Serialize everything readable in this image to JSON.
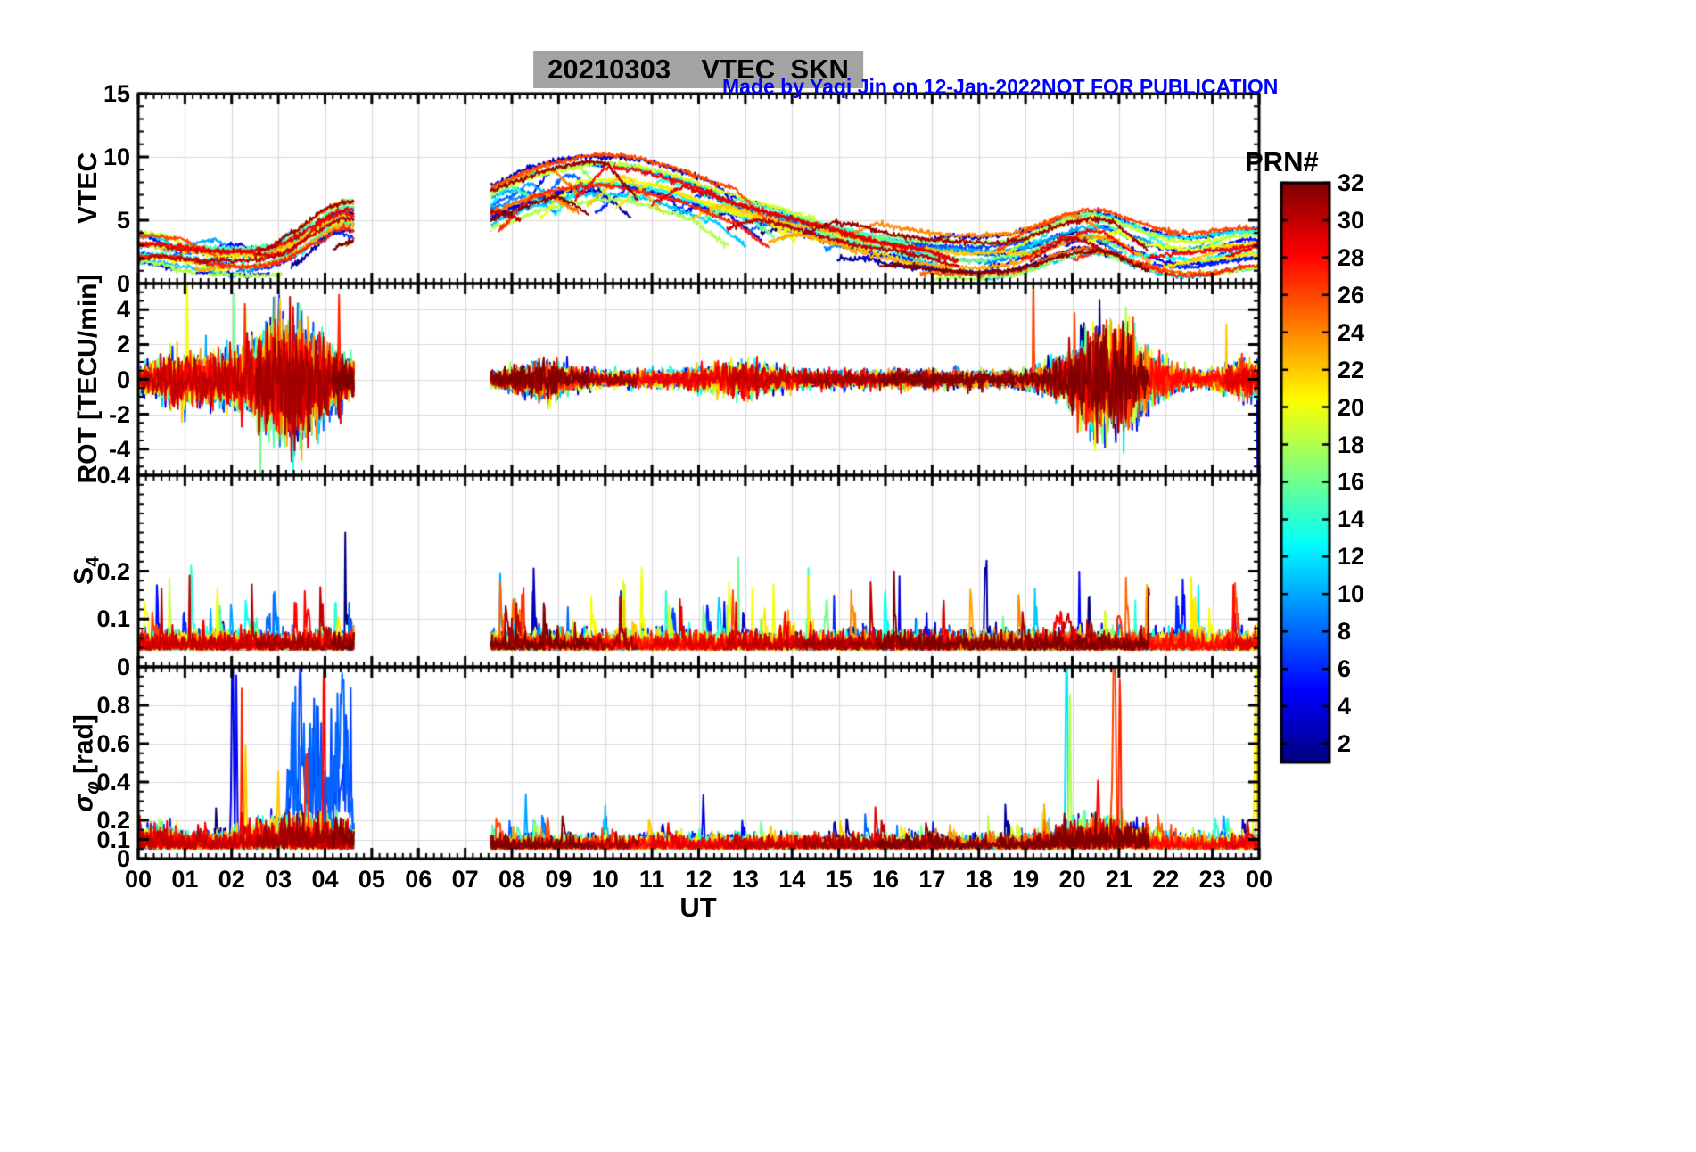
{
  "header": {
    "title": "20210303    VTEC  SKN",
    "credit": "Made by Yaqi Jin on 12-Jan-2022",
    "warning": "NOT FOR PUBLICATION"
  },
  "colors": {
    "background": "#ffffff",
    "axis": "#000000",
    "grid": "#d9d9d9",
    "title_bg": "#a3a3a3",
    "credit_blue": "#0000ff"
  },
  "chart_data": {
    "type": "line",
    "title": "20210303 VTEC SKN",
    "station": "SKN",
    "date": "20210303",
    "xlabel": "UT",
    "x_range": [
      0,
      24
    ],
    "x_tick_values": [
      0,
      1,
      2,
      3,
      4,
      5,
      6,
      7,
      8,
      9,
      10,
      11,
      12,
      13,
      14,
      15,
      16,
      17,
      18,
      19,
      20,
      21,
      22,
      23,
      24
    ],
    "x_tick_labels": [
      "00",
      "01",
      "02",
      "03",
      "04",
      "05",
      "06",
      "07",
      "08",
      "09",
      "10",
      "11",
      "12",
      "13",
      "14",
      "15",
      "16",
      "17",
      "18",
      "19",
      "20",
      "21",
      "22",
      "23",
      "00"
    ],
    "x_minor_step_hours": 0.166667,
    "data_gap_hours": [
      4.63,
      7.55
    ],
    "colorbar": {
      "label": "PRN#",
      "min": 1,
      "max": 32,
      "tick_values": [
        2,
        4,
        6,
        8,
        10,
        12,
        14,
        16,
        18,
        20,
        22,
        24,
        26,
        28,
        30,
        32
      ],
      "colormap": "jet"
    },
    "panels": [
      {
        "name": "VTEC",
        "ylabel": "VTEC",
        "ylim": [
          0,
          15
        ],
        "ytick_values": [
          0,
          5,
          10,
          15
        ],
        "ytick_labels": [
          "0",
          "5",
          "10",
          "15"
        ],
        "grid_values": [
          5,
          10
        ],
        "minor_step": 1,
        "description": "Vertical TEC per GPS satellite; ~2-6 TECU 00-04.6 UT, receiver gap 04.6-07.5 UT, broad daytime maximum ~8-10 TECU near 09-10 UT, decay to ~2-4 TECU by 18 UT, small evening enhancement 19.5-21.5 UT"
      },
      {
        "name": "ROT",
        "ylabel": "ROT [TECU/min]",
        "ylim": [
          -5.5,
          5.5
        ],
        "ytick_values": [
          -4,
          -2,
          0,
          2,
          4
        ],
        "ytick_labels": [
          "-4",
          "-2",
          "0",
          "2",
          "4"
        ],
        "grid_values": [
          -4,
          -2,
          0,
          2,
          4
        ],
        "minor_step": 0.5,
        "description": "Rate of TEC change centered on 0; strong fluctuations +/-3 to 4 during 02-04.6 UT and 19.5-21.5 UT; isolated full-scale spikes near 01.1 and 19.2 UT"
      },
      {
        "name": "S4",
        "ylabel_main": "S",
        "ylabel_sub": "4",
        "ylim": [
          0,
          0.4
        ],
        "ytick_values": [
          0,
          0.1,
          0.2,
          0.4
        ],
        "ytick_labels": [
          "0",
          "0.1",
          "0.2",
          "0.4"
        ],
        "grid_values": [
          0.1,
          0.2
        ],
        "minor_step": 0.02,
        "description": "Amplitude scintillation index; baseline ~0.03-0.08 with sporadic spikes to 0.1-0.2 (largest ~0.2 near 12.9 and 16.3 UT)"
      },
      {
        "name": "sigma_phi",
        "ylabel_sym": "σ",
        "ylabel_sub": "φ",
        "ylabel_rest": " [rad]",
        "ylim": [
          0,
          1
        ],
        "ytick_values": [
          0,
          0.1,
          0.2,
          0.4,
          0.6,
          0.8
        ],
        "ytick_labels": [
          "0",
          "0.1",
          "0.2",
          "0.4",
          "0.6",
          "0.8"
        ],
        "grid_values": [
          0.1,
          0.2,
          0.4,
          0.6,
          0.8
        ],
        "minor_step": 0.05,
        "description": "Phase scintillation; baseline ~0.05-0.15 rad, saturated spikes to ~1 rad near 02.0-02.3, 04.0, 19.9, 20.9-21.1 and 23.9-24.0 UT, elevated blue-PRN cloud 0.2-0.7 rad during 03.2-04.6 UT"
      }
    ],
    "synthesis": {
      "seed": 20210303,
      "sample_minutes": 1,
      "prn_count": 32,
      "visibility": {
        "start_mul": 1.63,
        "dur_base": 5.5,
        "dur_mod": 0.9,
        "second_offset": 11.7,
        "dur2_base": 5.0,
        "dur2_mod": 0.8,
        "event_halfwidth": 0.8
      },
      "vtec": {
        "floor": 2.0,
        "offset_amp": 1.2,
        "wander": 0.05,
        "noise": 0.1,
        "bumps": [
          {
            "c": 9.9,
            "w": 3.6,
            "a": 6.6
          },
          {
            "c": 20.4,
            "w": 1.3,
            "a": 2.2
          },
          {
            "c": 4.4,
            "w": 1.0,
            "a": 2.6
          },
          {
            "c": 14.5,
            "w": 2.2,
            "a": 1.0
          },
          {
            "c": 0.0,
            "w": 1.3,
            "a": 0.9
          },
          {
            "c": 24.0,
            "w": 1.3,
            "a": 0.9
          }
        ]
      },
      "rot": {
        "noise": 0.22,
        "envelope": [
          {
            "c": 3.2,
            "w": 1.05,
            "a": 6.5
          },
          {
            "c": 20.8,
            "w": 0.95,
            "a": 5.5
          },
          {
            "c": 8.7,
            "w": 0.6,
            "a": 1.3
          },
          {
            "c": 12.9,
            "w": 0.8,
            "a": 1.0
          },
          {
            "c": 1.0,
            "w": 0.9,
            "a": 2.0
          },
          {
            "c": 23.8,
            "w": 0.5,
            "a": 1.5
          }
        ]
      },
      "s4": {
        "base": 0.035,
        "noise": 0.016,
        "burst_prob": 0.004,
        "burst_amp": 0.1
      },
      "sigma": {
        "base": 0.05,
        "noise": 0.03,
        "burst_prob": 0.003,
        "burst_amp": 0.12,
        "envelope": [
          {
            "c": 3.5,
            "w": 1.2,
            "a": 1.6
          },
          {
            "c": 20.6,
            "w": 1.0,
            "a": 1.3
          },
          {
            "c": 0.3,
            "w": 0.6,
            "a": 0.8
          }
        ],
        "blue_band": {
          "prns": [
            7,
            8
          ],
          "t0": 3.15,
          "t1": 4.6,
          "base": 0.12,
          "noise": 0.22
        }
      },
      "events": {
        "rot": [
          {
            "prn": 20,
            "t": 1.05,
            "w": 0.012,
            "amp": 6.0
          },
          {
            "prn": 18,
            "t": 2.3,
            "w": 0.012,
            "amp": 4.0
          },
          {
            "prn": 16,
            "t": 2.05,
            "w": 0.012,
            "amp": 3.6
          },
          {
            "prn": 16,
            "t": 2.62,
            "w": 0.012,
            "amp": -3.4
          },
          {
            "prn": 9,
            "t": 2.9,
            "w": 0.012,
            "amp": 3.4
          },
          {
            "prn": 12,
            "t": 3.35,
            "w": 0.012,
            "amp": -3.2
          },
          {
            "prn": 27,
            "t": 4.3,
            "w": 0.012,
            "amp": 4.5
          },
          {
            "prn": 28,
            "t": 4.33,
            "w": 0.012,
            "amp": -3.6
          },
          {
            "prn": 26,
            "t": 19.17,
            "w": 0.012,
            "amp": 7.0
          },
          {
            "prn": 26,
            "t": 20.05,
            "w": 0.012,
            "amp": 3.2
          },
          {
            "prn": 28,
            "t": 20.3,
            "w": 0.012,
            "amp": -3.2
          },
          {
            "prn": 14,
            "t": 20.85,
            "w": 0.012,
            "amp": 3.4
          },
          {
            "prn": 12,
            "t": 21.1,
            "w": 0.012,
            "amp": -3.4
          },
          {
            "prn": 27,
            "t": 21.3,
            "w": 0.012,
            "amp": 3.0
          },
          {
            "prn": 22,
            "t": 23.3,
            "w": 0.012,
            "amp": 3.0
          },
          {
            "prn": 3,
            "t": 23.97,
            "w": 0.012,
            "amp": -6.0
          }
        ],
        "s4": [
          {
            "prn": 30,
            "t": 0.5,
            "w": 0.012,
            "amp": 0.12
          },
          {
            "prn": 30,
            "t": 1.1,
            "w": 0.012,
            "amp": 0.14
          },
          {
            "prn": 10,
            "t": 1.55,
            "w": 0.012,
            "amp": 0.08
          },
          {
            "prn": 8,
            "t": 9.2,
            "w": 0.012,
            "amp": 0.08
          },
          {
            "prn": 22,
            "t": 10.4,
            "w": 0.012,
            "amp": 0.09
          },
          {
            "prn": 4,
            "t": 12.55,
            "w": 0.012,
            "amp": 0.1
          },
          {
            "prn": 16,
            "t": 12.85,
            "w": 0.014,
            "amp": 0.16
          },
          {
            "prn": 20,
            "t": 13.15,
            "w": 0.012,
            "amp": 0.11
          },
          {
            "prn": 6,
            "t": 14.9,
            "w": 0.012,
            "amp": 0.09
          },
          {
            "prn": 4,
            "t": 16.3,
            "w": 0.01,
            "amp": 0.15
          },
          {
            "prn": 28,
            "t": 19.7,
            "w": 0.15,
            "amp": 0.05
          },
          {
            "prn": 30,
            "t": 19.9,
            "w": 0.12,
            "amp": 0.06
          },
          {
            "prn": 27,
            "t": 21.0,
            "w": 0.05,
            "amp": 0.07
          },
          {
            "prn": 14,
            "t": 21.35,
            "w": 0.012,
            "amp": 0.1
          },
          {
            "prn": 12,
            "t": 22.7,
            "w": 0.012,
            "amp": 0.1
          }
        ],
        "sigma": [
          {
            "prn": 4,
            "t": 2.02,
            "w": 0.03,
            "amp": 1.1
          },
          {
            "prn": 5,
            "t": 2.1,
            "w": 0.02,
            "amp": 0.9
          },
          {
            "prn": 27,
            "t": 2.22,
            "w": 0.018,
            "amp": 0.75
          },
          {
            "prn": 22,
            "t": 2.3,
            "w": 0.02,
            "amp": 0.5
          },
          {
            "prn": 22,
            "t": 3.0,
            "w": 0.03,
            "amp": 0.3
          },
          {
            "prn": 7,
            "t": 3.5,
            "w": 0.05,
            "amp": 0.35
          },
          {
            "prn": 27,
            "t": 3.6,
            "w": 0.03,
            "amp": 0.45
          },
          {
            "prn": 28,
            "t": 3.98,
            "w": 0.02,
            "amp": 1.1
          },
          {
            "prn": 8,
            "t": 4.35,
            "w": 0.06,
            "amp": 0.55
          },
          {
            "prn": 10,
            "t": 8.3,
            "w": 0.02,
            "amp": 0.25
          },
          {
            "prn": 4,
            "t": 12.1,
            "w": 0.02,
            "amp": 0.25
          },
          {
            "prn": 12,
            "t": 19.88,
            "w": 0.025,
            "amp": 1.1
          },
          {
            "prn": 18,
            "t": 19.95,
            "w": 0.02,
            "amp": 0.75
          },
          {
            "prn": 28,
            "t": 20.55,
            "w": 0.02,
            "amp": 0.35
          },
          {
            "prn": 26,
            "t": 20.9,
            "w": 0.04,
            "amp": 1.15
          },
          {
            "prn": 27,
            "t": 21.02,
            "w": 0.025,
            "amp": 0.9
          },
          {
            "prn": 20,
            "t": 23.95,
            "w": 0.05,
            "amp": 1.05
          },
          {
            "prn": 22,
            "t": 23.99,
            "w": 0.04,
            "amp": 0.9
          }
        ]
      }
    }
  }
}
